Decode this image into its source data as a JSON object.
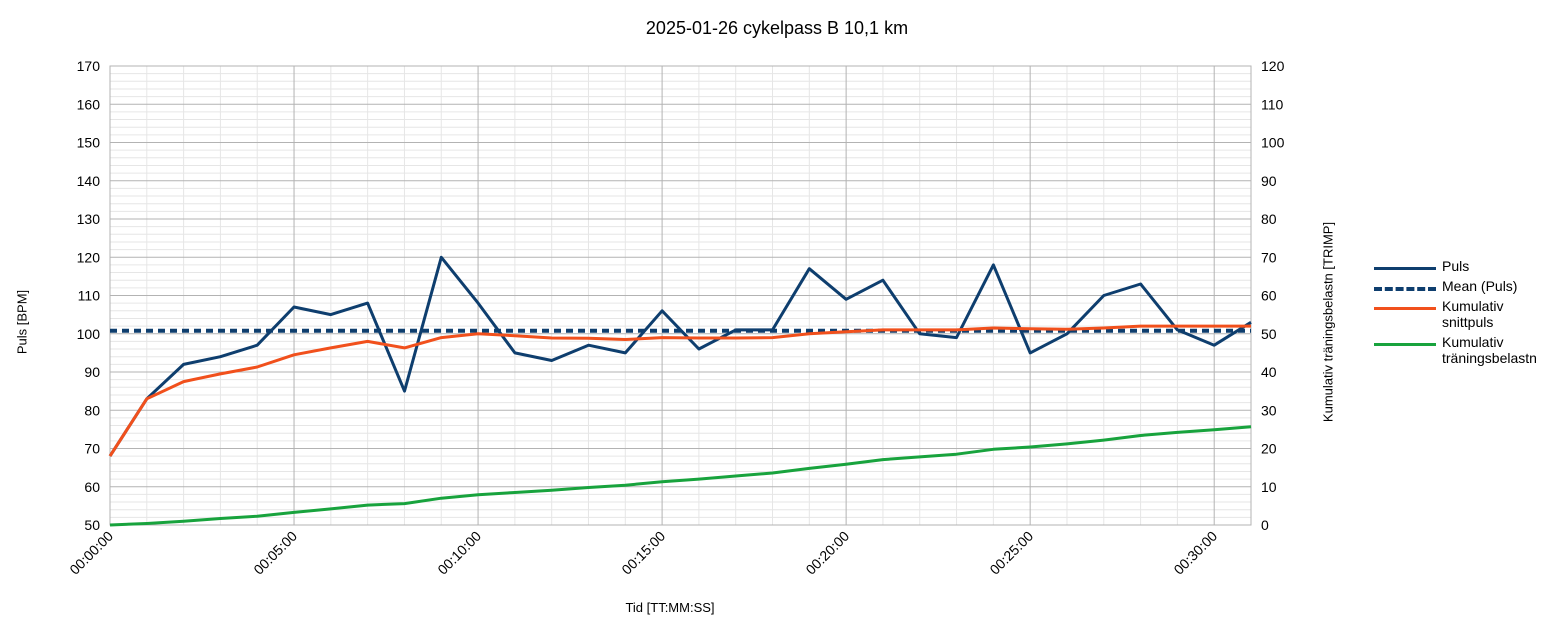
{
  "chart_data": {
    "type": "line",
    "title": "2025-01-26 cykelpass B 10,1 km",
    "xlabel": "Tid [TT:MM:SS]",
    "ylabel": "Puls [BPM]",
    "y2label": "Kumulativ träningsbelastn [TRIMP]",
    "x_minutes": [
      0,
      1,
      2,
      3,
      4,
      5,
      6,
      7,
      8,
      9,
      10,
      11,
      12,
      13,
      14,
      15,
      16,
      17,
      18,
      19,
      20,
      21,
      22,
      23,
      24,
      25,
      26,
      27,
      28,
      29,
      30,
      31
    ],
    "x_tick_labels": [
      "00:00:00",
      "00:05:00",
      "00:10:00",
      "00:15:00",
      "00:20:00",
      "00:25:00",
      "00:30:00"
    ],
    "x_tick_minutes": [
      0,
      5,
      10,
      15,
      20,
      25,
      30
    ],
    "xlim_minutes": [
      0,
      31
    ],
    "ylim": [
      50,
      170
    ],
    "y_ticks": [
      50,
      60,
      70,
      80,
      90,
      100,
      110,
      120,
      130,
      140,
      150,
      160,
      170
    ],
    "y2lim": [
      0,
      120
    ],
    "y2_ticks": [
      0,
      10,
      20,
      30,
      40,
      50,
      60,
      70,
      80,
      90,
      100,
      110,
      120
    ],
    "grid": true,
    "legend_position": "right",
    "series": [
      {
        "name": "Puls",
        "axis": "left",
        "color": "#0e3e6e",
        "style": "solid",
        "values": [
          68,
          83,
          92,
          94,
          97,
          107,
          105,
          108,
          85,
          120,
          108,
          95,
          93,
          97,
          95,
          106,
          96,
          101,
          101,
          117,
          109,
          114,
          100,
          99,
          118,
          95,
          100,
          110,
          113,
          101,
          97,
          103
        ]
      },
      {
        "name": "Mean (Puls)",
        "axis": "left",
        "color": "#0e3e6e",
        "style": "dashed",
        "values": [
          100.8,
          100.8
        ]
      },
      {
        "name": "Kumulativ snittpuls",
        "axis": "left",
        "color": "#f1501c",
        "style": "solid",
        "values": [
          68,
          83,
          87.5,
          89.5,
          91.3,
          94.5,
          96.3,
          98,
          96.3,
          99,
          100,
          99.5,
          98.9,
          98.8,
          98.5,
          99,
          98.9,
          98.9,
          99,
          100,
          100.5,
          101,
          101,
          101,
          101.5,
          101.3,
          101.2,
          101.5,
          102,
          102,
          102,
          102
        ]
      },
      {
        "name": "Kumulativ träningsbelastn",
        "axis": "right",
        "color": "#18a33d",
        "style": "solid",
        "values": [
          0,
          0.4,
          1,
          1.7,
          2.3,
          3.3,
          4.2,
          5.2,
          5.6,
          7,
          7.9,
          8.5,
          9.1,
          9.8,
          10.4,
          11.3,
          12,
          12.8,
          13.6,
          14.8,
          15.9,
          17.1,
          17.8,
          18.5,
          19.8,
          20.4,
          21.2,
          22.2,
          23.4,
          24.2,
          24.9,
          25.7
        ]
      }
    ]
  }
}
